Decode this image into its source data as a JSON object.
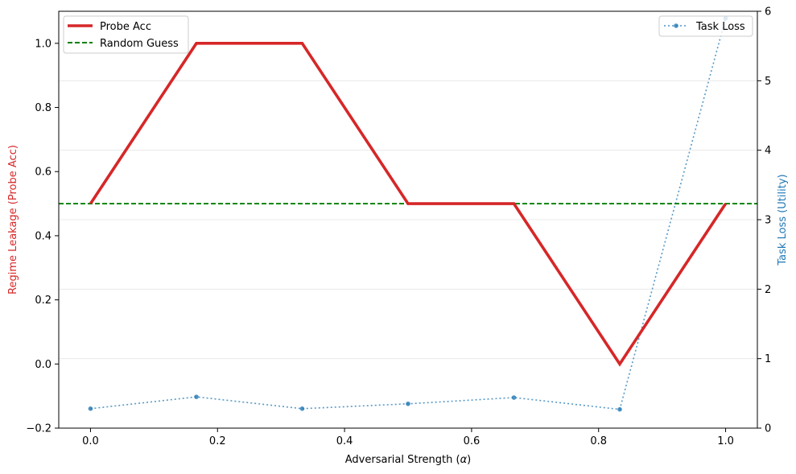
{
  "chart_data": {
    "type": "line",
    "title": "",
    "xlabel": "Adversarial Strength (",
    "xlabel_symbol": "α",
    "xlabel_close": ")",
    "ylabel_left": "Regime Leakage (Probe Acc)",
    "ylabel_right": "Task Loss (Utility)",
    "xlim": [
      -0.05,
      1.05
    ],
    "ylim_left": [
      -0.2,
      1.1
    ],
    "ylim_right": [
      0,
      6
    ],
    "x_ticks": [
      0.0,
      0.2,
      0.4,
      0.6,
      0.8,
      1.0
    ],
    "x_tick_labels": [
      "0.0",
      "0.2",
      "0.4",
      "0.6",
      "0.8",
      "1.0"
    ],
    "y_left_ticks": [
      -0.2,
      0.0,
      0.2,
      0.4,
      0.6,
      0.8,
      1.0
    ],
    "y_left_tick_labels": [
      "−0.2",
      "0.0",
      "0.2",
      "0.4",
      "0.6",
      "0.8",
      "1.0"
    ],
    "y_right_ticks": [
      0,
      1,
      2,
      3,
      4,
      5,
      6
    ],
    "y_right_tick_labels": [
      "0",
      "1",
      "2",
      "3",
      "4",
      "5",
      "6"
    ],
    "x": [
      0.0,
      0.1667,
      0.3333,
      0.5,
      0.6667,
      0.8333,
      1.0
    ],
    "series": [
      {
        "name": "Probe Acc",
        "axis": "left",
        "values": [
          0.5,
          1.0,
          1.0,
          0.5,
          0.5,
          0.0,
          0.5
        ],
        "color": "#d62728",
        "style": "solid"
      },
      {
        "name": "Task Loss",
        "axis": "right",
        "values": [
          0.28,
          0.45,
          0.28,
          0.35,
          0.44,
          0.27,
          5.9
        ],
        "color": "#1f77b4",
        "style": "dotted",
        "marker": "circle"
      }
    ],
    "reference_lines": [
      {
        "name": "Random Guess",
        "axis": "left",
        "y": 0.5,
        "color": "#008000",
        "style": "dashed"
      }
    ],
    "grid": "horizontal-light",
    "legend_left": {
      "placement": "top-left",
      "entries": [
        "Probe Acc",
        "Random Guess"
      ]
    },
    "legend_right": {
      "placement": "top-right",
      "entries": [
        "Task Loss"
      ]
    },
    "colors": {
      "left_axis_label": "#d62728",
      "right_axis_label": "#1f77b4"
    }
  }
}
